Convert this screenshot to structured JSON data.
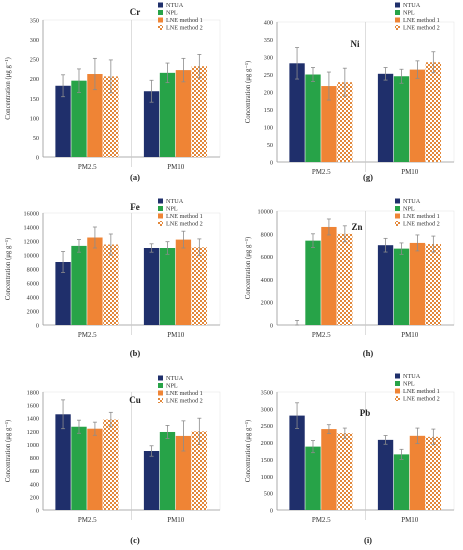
{
  "figure": {
    "panel_labels": [
      "(a)",
      "(g)",
      "(b)",
      "(h)",
      "(c)",
      "(i)"
    ]
  },
  "chart_data": [
    {
      "type": "bar",
      "panel": "(a)",
      "title": "Cr",
      "categories": [
        "PM2.5",
        "PM10"
      ],
      "ylabel": "Concentration (μg g⁻¹)",
      "ylim": [
        0,
        350
      ],
      "yticks": [
        0,
        50,
        100,
        150,
        200,
        250,
        300,
        350
      ],
      "yticklabels": [
        "0",
        "50",
        "100",
        "150",
        "200",
        "250",
        "300",
        "350"
      ],
      "legend": "top-right",
      "series": [
        {
          "name": "NTUA",
          "values": [
            182,
            168
          ],
          "errors": [
            28,
            28
          ]
        },
        {
          "name": "NPL",
          "values": [
            195,
            215
          ],
          "errors": [
            30,
            25
          ]
        },
        {
          "name": "LNE method 1",
          "values": [
            212,
            222
          ],
          "errors": [
            40,
            30
          ]
        },
        {
          "name": "LNE method 2",
          "values": [
            206,
            232
          ],
          "errors": [
            42,
            30
          ]
        }
      ]
    },
    {
      "type": "bar",
      "panel": "(g)",
      "title": "Ni",
      "categories": [
        "PM2.5",
        "PM10"
      ],
      "ylabel": "Concentration (μg g⁻¹)",
      "ylim": [
        0,
        400
      ],
      "yticks": [
        0,
        50,
        100,
        150,
        200,
        250,
        300,
        350,
        400
      ],
      "yticklabels": [
        "0",
        "50",
        "100",
        "150",
        "200",
        "250",
        "300",
        "350",
        "400"
      ],
      "legend": "top-right",
      "series": [
        {
          "name": "NTUA",
          "values": [
            282,
            252
          ],
          "errors": [
            45,
            18
          ]
        },
        {
          "name": "NPL",
          "values": [
            250,
            245
          ],
          "errors": [
            20,
            20
          ]
        },
        {
          "name": "LNE method 1",
          "values": [
            217,
            264
          ],
          "errors": [
            40,
            25
          ]
        },
        {
          "name": "LNE method 2",
          "values": [
            228,
            285
          ],
          "errors": [
            40,
            30
          ]
        }
      ]
    },
    {
      "type": "bar",
      "panel": "(b)",
      "title": "Fe",
      "categories": [
        "PM2.5",
        "PM10"
      ],
      "ylabel": "Concentration (μg g⁻¹)",
      "ylim": [
        0,
        16000
      ],
      "yticks": [
        0,
        2000,
        4000,
        6000,
        8000,
        10000,
        12000,
        14000,
        16000
      ],
      "yticklabels": [
        "0",
        "2000",
        "4000",
        "6000",
        "8000",
        "10000",
        "12000",
        "14000",
        "16000"
      ],
      "legend": "top-right",
      "series": [
        {
          "name": "NTUA",
          "values": [
            9000,
            11000
          ],
          "errors": [
            1500,
            600
          ]
        },
        {
          "name": "NPL",
          "values": [
            11300,
            11000
          ],
          "errors": [
            900,
            900
          ]
        },
        {
          "name": "LNE method 1",
          "values": [
            12500,
            12200
          ],
          "errors": [
            1500,
            1200
          ]
        },
        {
          "name": "LNE method 2",
          "values": [
            11500,
            11100
          ],
          "errors": [
            1500,
            1200
          ]
        }
      ]
    },
    {
      "type": "bar",
      "panel": "(h)",
      "title": "Zn",
      "categories": [
        "PM2.5",
        "PM10"
      ],
      "ylabel": "Concentration (μg g⁻¹)",
      "ylim": [
        0,
        10000
      ],
      "yticks": [
        0,
        2000,
        4000,
        6000,
        8000,
        10000
      ],
      "yticklabels": [
        "0",
        "2000",
        "4000",
        "6000",
        "8000",
        "10000"
      ],
      "legend": "top-right",
      "series": [
        {
          "name": "NTUA",
          "values": [
            0,
            7000
          ],
          "errors": [
            400,
            600
          ]
        },
        {
          "name": "NPL",
          "values": [
            7400,
            6700
          ],
          "errors": [
            600,
            500
          ]
        },
        {
          "name": "LNE method 1",
          "values": [
            8600,
            7200
          ],
          "errors": [
            700,
            700
          ]
        },
        {
          "name": "LNE method 2",
          "values": [
            8000,
            7100
          ],
          "errors": [
            700,
            700
          ]
        }
      ]
    },
    {
      "type": "bar",
      "panel": "(c)",
      "title": "Cu",
      "categories": [
        "PM2.5",
        "PM10"
      ],
      "ylabel": "Concentration (μg g⁻¹)",
      "ylim": [
        0,
        1800
      ],
      "yticks": [
        0,
        200,
        400,
        600,
        800,
        1000,
        1200,
        1400,
        1600,
        1800
      ],
      "yticklabels": [
        "0",
        "200",
        "400",
        "600",
        "800",
        "1000",
        "1200",
        "1400",
        "1600",
        "1800"
      ],
      "legend": "top-right",
      "series": [
        {
          "name": "NTUA",
          "values": [
            1460,
            900
          ],
          "errors": [
            220,
            80
          ]
        },
        {
          "name": "NPL",
          "values": [
            1270,
            1190
          ],
          "errors": [
            100,
            100
          ]
        },
        {
          "name": "LNE method 1",
          "values": [
            1240,
            1130
          ],
          "errors": [
            100,
            230
          ]
        },
        {
          "name": "LNE method 2",
          "values": [
            1380,
            1200
          ],
          "errors": [
            110,
            200
          ]
        }
      ]
    },
    {
      "type": "bar",
      "panel": "(i)",
      "title": "Pb",
      "categories": [
        "PM2.5",
        "PM10"
      ],
      "ylabel": "Concentration (μg g⁻¹)",
      "ylim": [
        0,
        3500
      ],
      "yticks": [
        0,
        500,
        1000,
        1500,
        2000,
        2500,
        3000,
        3500
      ],
      "yticklabels": [
        "0",
        "500",
        "1000",
        "1500",
        "2000",
        "2500",
        "3000",
        "3500"
      ],
      "legend": "top-right",
      "series": [
        {
          "name": "NTUA",
          "values": [
            2800,
            2080
          ],
          "errors": [
            380,
            130
          ]
        },
        {
          "name": "NPL",
          "values": [
            1880,
            1650
          ],
          "errors": [
            180,
            150
          ]
        },
        {
          "name": "LNE method 1",
          "values": [
            2400,
            2200
          ],
          "errors": [
            130,
            230
          ]
        },
        {
          "name": "LNE method 2",
          "values": [
            2280,
            2170
          ],
          "errors": [
            150,
            230
          ]
        }
      ]
    }
  ],
  "colors": {
    "NTUA": "#1f2f6b",
    "NPL": "#27a348",
    "LNE method 1": "#ef8435",
    "LNE method 2": "#e28a3c",
    "error_bar": "#8c8c8c",
    "axis": "#9a9a9a"
  }
}
